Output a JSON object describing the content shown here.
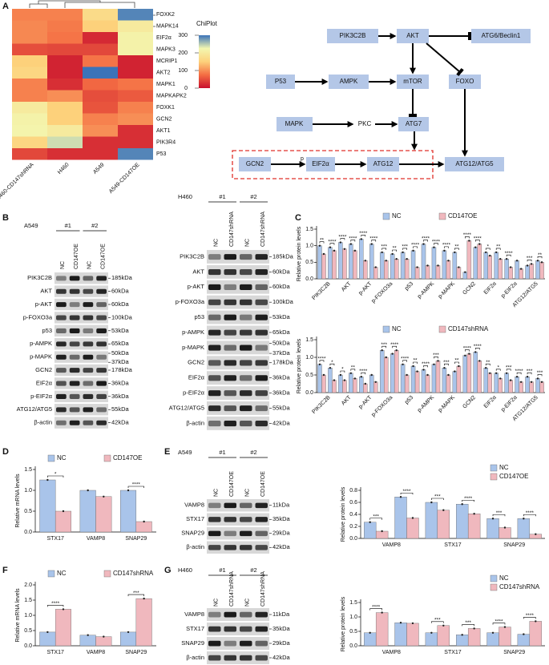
{
  "A": {
    "label": "A",
    "heatmap": {
      "rows": [
        "FOXK2",
        "MAPK14",
        "EIF2α",
        "MAPK3",
        "MCRIP1",
        "AKT2",
        "MAPK1",
        "MAPKAPK2",
        "FOXK1",
        "GCN2",
        "AKT1",
        "PIK3R4",
        "P53"
      ],
      "columns": [
        "H460-CD147shRNA",
        "H460",
        "A549",
        "A549-CD147OE"
      ],
      "values": [
        [
          90,
          90,
          170,
          290
        ],
        [
          95,
          85,
          150,
          200
        ],
        [
          95,
          80,
          20,
          215
        ],
        [
          50,
          45,
          45,
          215
        ],
        [
          150,
          15,
          80,
          15
        ],
        [
          160,
          15,
          300,
          15
        ],
        [
          90,
          25,
          70,
          80
        ],
        [
          90,
          100,
          50,
          60
        ],
        [
          200,
          150,
          55,
          90
        ],
        [
          215,
          150,
          90,
          100
        ],
        [
          220,
          200,
          100,
          25
        ],
        [
          160,
          240,
          25,
          25
        ],
        [
          45,
          25,
          25,
          290
        ]
      ],
      "legend_title": "ChiPlot",
      "clim": [
        0,
        300
      ],
      "cticks": [
        0,
        100,
        200,
        300
      ],
      "colors": [
        "#c8102e",
        "#f46d43",
        "#fdd17b",
        "#f3f7b0",
        "#3b73b9"
      ]
    },
    "diagram": {
      "nodes": [
        "PIK3C2B",
        "AKT",
        "ATG6/Beclin1",
        "P53",
        "AMPK",
        "mTOR",
        "FOXO",
        "MAPK",
        "PKC",
        "ATG7",
        "GCN2",
        "EIF2α",
        "ATG12",
        "ATG12/ATG5"
      ],
      "p_label": "p"
    }
  },
  "B": {
    "label": "B",
    "blots": [
      {
        "cell": "A549",
        "groups": [
          "#1",
          "#2"
        ],
        "lanes": [
          "NC",
          "CD147OE",
          "NC",
          "CD147OE"
        ],
        "rows": [
          {
            "protein": "PIK3C2B",
            "kda": [
              "185kDa"
            ]
          },
          {
            "protein": "AKT",
            "kda": [
              "60kDa"
            ]
          },
          {
            "protein": "p-AKT",
            "kda": [
              "60kDa"
            ]
          },
          {
            "protein": "p-FOXO3a",
            "kda": [
              "100kDa"
            ]
          },
          {
            "protein": "p53",
            "kda": [
              "53kDa"
            ]
          },
          {
            "protein": "p-AMPK",
            "kda": [
              "65kDa"
            ]
          },
          {
            "protein": "p-MAPK",
            "kda": [
              "50kDa",
              "37kDa"
            ]
          },
          {
            "protein": "GCN2",
            "kda": [
              "178kDa"
            ]
          },
          {
            "protein": "EIF2α",
            "kda": [
              "36kDa"
            ]
          },
          {
            "protein": "p-EIF2α",
            "kda": [
              "36kDa"
            ]
          },
          {
            "protein": "ATG12/ATG5",
            "kda": [
              "55kDa"
            ]
          },
          {
            "protein": "β-actin",
            "kda": [
              "42kDa"
            ]
          }
        ]
      },
      {
        "cell": "H460",
        "groups": [
          "#1",
          "#2"
        ],
        "lanes": [
          "NC",
          "CD147shRNA",
          "NC",
          "CD147shRNA"
        ],
        "rows": [
          {
            "protein": "PIK3C2B",
            "kda": [
              "185kDa"
            ]
          },
          {
            "protein": "AKT",
            "kda": [
              "60kDa"
            ]
          },
          {
            "protein": "p-AKT",
            "kda": [
              "60kDa"
            ]
          },
          {
            "protein": "p-FOXO3a",
            "kda": [
              "100kDa"
            ]
          },
          {
            "protein": "p53",
            "kda": [
              "53kDa"
            ]
          },
          {
            "protein": "p-AMPK",
            "kda": [
              "65kDa"
            ]
          },
          {
            "protein": "p-MAPK",
            "kda": [
              "50kDa",
              "37kDa"
            ]
          },
          {
            "protein": "GCN2",
            "kda": [
              "178kDa"
            ]
          },
          {
            "protein": "EIF2α",
            "kda": [
              "36kDa"
            ]
          },
          {
            "protein": "p-EIF2α",
            "kda": [
              "36kDa"
            ]
          },
          {
            "protein": "ATG12/ATG5",
            "kda": [
              "55kDa"
            ]
          },
          {
            "protein": "β-actin",
            "kda": [
              "42kDa"
            ]
          }
        ]
      }
    ]
  },
  "C": {
    "label": "C",
    "charts": [
      {
        "type": "bar",
        "y_label": "Relative protein levels",
        "categories": [
          "PIK3C2B",
          "AKT",
          "p-AKT",
          "p-FOXO3a",
          "p53",
          "p-AMPK",
          "p-MAPK",
          "GCN2",
          "EIF2α",
          "p-EIF2α",
          "ATG12/ATG5"
        ],
        "series": [
          {
            "name": "NC",
            "color": "#a9c4ea",
            "values": [
              [
                1.0,
                0.95
              ],
              [
                1.1,
                1.05
              ],
              [
                1.2,
                1.05
              ],
              [
                0.8,
                0.75
              ],
              [
                0.8,
                0.85
              ],
              [
                1.05,
                0.95
              ],
              [
                0.85,
                0.8
              ],
              [
                0.2,
                0.95
              ],
              [
                0.8,
                0.8
              ],
              [
                0.6,
                0.55
              ],
              [
                0.4,
                0.55
              ]
            ]
          },
          {
            "name": "CD147OE",
            "color": "#f0b8be",
            "values": [
              [
                0.75,
                0.85
              ],
              [
                0.9,
                0.85
              ],
              [
                0.55,
                0.35
              ],
              [
                0.55,
                0.6
              ],
              [
                0.6,
                0.35
              ],
              [
                0.4,
                0.4
              ],
              [
                0.55,
                0.35
              ],
              [
                1.15,
                1.05
              ],
              [
                0.7,
                0.6
              ],
              [
                0.35,
                0.3
              ],
              [
                0.45,
                0.5
              ]
            ]
          }
        ],
        "significance": [
          [
            "**",
            "****"
          ],
          [
            "****",
            "****"
          ],
          [
            "****",
            "****"
          ],
          [
            "***",
            "**"
          ],
          [
            "***",
            "****"
          ],
          [
            "****",
            "****"
          ],
          [
            "****",
            "**"
          ],
          [
            "****",
            "****"
          ],
          [
            "*",
            "**"
          ],
          [
            "****",
            null
          ],
          [
            "***",
            "**"
          ]
        ],
        "ylim": [
          0,
          1.5
        ],
        "yticks": [
          {
            "value": 0,
            "label": "0.0"
          },
          0.5,
          {
            "value": 1,
            "label": "1.0"
          },
          1.5
        ]
      },
      {
        "type": "bar",
        "y_label": "Relative protein levels",
        "categories": [
          "PIK3C2B",
          "AKT",
          "p-AKT",
          "p-FOXO3a",
          "p53",
          "p-AMPK",
          "p-MAPK",
          "GCN2",
          "EIF2α",
          "p-EIF2α",
          "ATG12/ATG5"
        ],
        "series": [
          {
            "name": "NC",
            "color": "#a9c4ea",
            "values": [
              [
                0.8,
                0.7
              ],
              [
                0.5,
                0.55
              ],
              [
                0.45,
                0.5
              ],
              [
                1.2,
                1.1
              ],
              [
                0.8,
                0.75
              ],
              [
                0.65,
                0.8
              ],
              [
                0.7,
                0.6
              ],
              [
                1.05,
                1.15
              ],
              [
                0.7,
                0.55
              ],
              [
                0.55,
                0.45
              ],
              [
                0.45,
                0.4
              ]
            ]
          },
          {
            "name": "CD147shRNA",
            "color": "#f0b8be",
            "values": [
              [
                0.5,
                0.35
              ],
              [
                0.35,
                0.4
              ],
              [
                0.25,
                0.3
              ],
              [
                1.0,
                1.2
              ],
              [
                0.5,
                0.6
              ],
              [
                0.5,
                0.9
              ],
              [
                0.5,
                0.75
              ],
              [
                1.1,
                0.9
              ],
              [
                0.55,
                0.4
              ],
              [
                0.35,
                0.3
              ],
              [
                0.3,
                0.3
              ]
            ]
          }
        ],
        "significance": [
          [
            "****",
            "*"
          ],
          [
            "*",
            "**"
          ],
          [
            "****",
            null
          ],
          [
            "***",
            "****"
          ],
          [
            "****",
            "**"
          ],
          [
            "****",
            "***"
          ],
          [
            "***",
            "**"
          ],
          [
            "****",
            "****"
          ],
          [
            "**",
            "*"
          ],
          [
            "***",
            "****"
          ],
          [
            "***",
            "***"
          ]
        ],
        "ylim": [
          0,
          1.5
        ],
        "yticks": [
          {
            "value": 0,
            "label": "0.0"
          },
          0.5,
          {
            "value": 1,
            "label": "1.0"
          },
          1.5
        ]
      }
    ]
  },
  "D": {
    "label": "D",
    "chart": {
      "type": "bar",
      "y_label": "Relative mRNA levels",
      "categories": [
        "STX17",
        "VAMP8",
        "SNAP29"
      ],
      "series": [
        {
          "name": "NC",
          "color": "#a9c4ea",
          "values": [
            1.25,
            1.0,
            1.0
          ]
        },
        {
          "name": "CD147OE",
          "color": "#f0b8be",
          "values": [
            0.5,
            0.85,
            0.25
          ]
        }
      ],
      "significance": [
        "*",
        null,
        "****"
      ],
      "ylim": [
        0,
        1.5
      ],
      "yticks": [
        {
          "value": 0,
          "label": "0.0"
        },
        0.5,
        {
          "value": 1,
          "label": "1.0"
        },
        1.5
      ]
    }
  },
  "E": {
    "label": "E",
    "blot": {
      "cell": "A549",
      "groups": [
        "#1",
        "#2"
      ],
      "lanes": [
        "NC",
        "CD147OE",
        "NC",
        "CD147OE"
      ],
      "rows": [
        {
          "protein": "VAMP8",
          "kda": [
            "11kDa"
          ]
        },
        {
          "protein": "STX17",
          "kda": [
            "35kDa"
          ]
        },
        {
          "protein": "SNAP29",
          "kda": [
            "29kDa"
          ]
        },
        {
          "protein": "β-actin",
          "kda": [
            "42kDa"
          ]
        }
      ]
    },
    "chart": {
      "type": "bar",
      "y_label": "Relative protein levels",
      "categories": [
        "VAMP8",
        "STX17",
        "SNAP29"
      ],
      "series": [
        {
          "name": "NC",
          "color": "#a9c4ea",
          "values": [
            [
              0.27,
              0.69
            ],
            [
              0.6,
              0.57
            ],
            [
              0.33,
              0.33
            ]
          ]
        },
        {
          "name": "CD147OE",
          "color": "#f0b8be",
          "values": [
            [
              0.12,
              0.34
            ],
            [
              0.47,
              0.41
            ],
            [
              0.18,
              0.07
            ]
          ]
        }
      ],
      "significance": [
        [
          "***",
          "****"
        ],
        [
          "***",
          "****"
        ],
        [
          "***",
          "****"
        ]
      ],
      "ylim": [
        0,
        0.8
      ],
      "yticks": [
        {
          "value": 0,
          "label": "0.0"
        },
        0.2,
        0.4,
        0.6,
        0.8
      ]
    }
  },
  "F": {
    "label": "F",
    "chart": {
      "type": "bar",
      "y_label": "Relative mRNA levels",
      "categories": [
        "STX17",
        "VAMP8",
        "SNAP29"
      ],
      "series": [
        {
          "name": "NC",
          "color": "#a9c4ea",
          "values": [
            0.45,
            0.35,
            0.45
          ]
        },
        {
          "name": "CD147shRNA",
          "color": "#f0b8be",
          "values": [
            1.2,
            0.3,
            1.55
          ]
        }
      ],
      "significance": [
        "****",
        null,
        "***"
      ],
      "ylim": [
        0,
        2
      ],
      "yticks": [
        {
          "value": 0,
          "label": "0.0"
        },
        0.5,
        {
          "value": 1,
          "label": "1.0"
        },
        1.5,
        {
          "value": 2,
          "label": "2.0"
        }
      ]
    }
  },
  "G": {
    "label": "G",
    "blot": {
      "cell": "H460",
      "groups": [
        "#1",
        "#2"
      ],
      "lanes": [
        "NC",
        "CD147shRNA",
        "NC",
        "CD147shRNA"
      ],
      "rows": [
        {
          "protein": "VAMP8",
          "kda": [
            "11kDa"
          ]
        },
        {
          "protein": "STX17",
          "kda": [
            "35kDa"
          ]
        },
        {
          "protein": "SNAP29",
          "kda": [
            "29kDa"
          ]
        },
        {
          "protein": "β-actin",
          "kda": [
            "42kDa"
          ]
        }
      ]
    },
    "chart": {
      "type": "bar",
      "y_label": "Relative protein levels",
      "categories": [
        "VAMP8",
        "STX17",
        "SNAP29"
      ],
      "series": [
        {
          "name": "NC",
          "color": "#a9c4ea",
          "values": [
            [
              0.45,
              0.8
            ],
            [
              0.45,
              0.38
            ],
            [
              0.45,
              0.4
            ]
          ]
        },
        {
          "name": "CD147shRNA",
          "color": "#f0b8be",
          "values": [
            [
              1.15,
              0.78
            ],
            [
              0.7,
              0.6
            ],
            [
              0.65,
              0.85
            ]
          ]
        }
      ],
      "significance": [
        [
          "****",
          null
        ],
        [
          "***",
          "***"
        ],
        [
          "****",
          "****"
        ]
      ],
      "ylim": [
        0,
        1.5
      ],
      "yticks": [
        {
          "value": 0,
          "label": "0.0"
        },
        0.5,
        {
          "value": 1,
          "label": "1.0"
        },
        1.5
      ]
    }
  }
}
